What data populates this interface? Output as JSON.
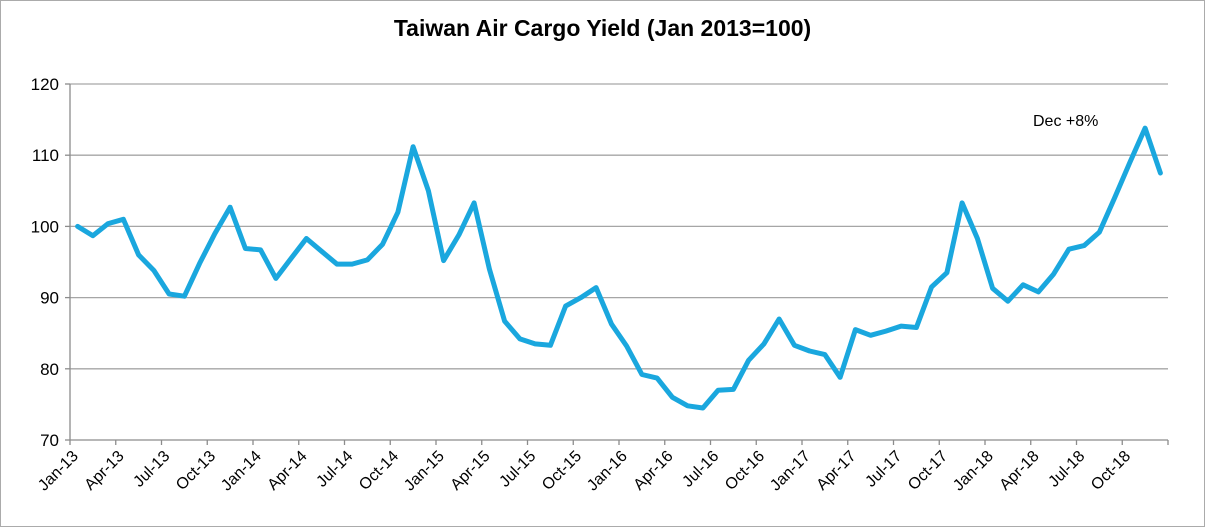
{
  "chart_data": {
    "type": "line",
    "title": "Taiwan Air Cargo Yield (Jan 2013=100)",
    "series_name": "Taiwan air cargo yield index (Jan 2013 = 100)",
    "x": [
      "Jan-13",
      "Feb-13",
      "Mar-13",
      "Apr-13",
      "May-13",
      "Jun-13",
      "Jul-13",
      "Aug-13",
      "Sep-13",
      "Oct-13",
      "Nov-13",
      "Dec-13",
      "Jan-14",
      "Feb-14",
      "Mar-14",
      "Apr-14",
      "May-14",
      "Jun-14",
      "Jul-14",
      "Aug-14",
      "Sep-14",
      "Oct-14",
      "Nov-14",
      "Dec-14",
      "Jan-15",
      "Feb-15",
      "Mar-15",
      "Apr-15",
      "May-15",
      "Jun-15",
      "Jul-15",
      "Aug-15",
      "Sep-15",
      "Oct-15",
      "Nov-15",
      "Dec-15",
      "Jan-16",
      "Feb-16",
      "Mar-16",
      "Apr-16",
      "May-16",
      "Jun-16",
      "Jul-16",
      "Aug-16",
      "Sep-16",
      "Oct-16",
      "Nov-16",
      "Dec-16",
      "Jan-17",
      "Feb-17",
      "Mar-17",
      "Apr-17",
      "May-17",
      "Jun-17",
      "Jul-17",
      "Aug-17",
      "Sep-17",
      "Oct-17",
      "Nov-17",
      "Dec-17",
      "Jan-18",
      "Feb-18",
      "Mar-18",
      "Apr-18",
      "May-18",
      "Jun-18",
      "Jul-18",
      "Aug-18",
      "Sep-18",
      "Oct-18",
      "Nov-18",
      "Dec-18"
    ],
    "values": [
      100,
      98.7,
      100.4,
      101,
      96,
      93.8,
      90.5,
      90.2,
      94.8,
      99,
      102.7,
      96.9,
      96.7,
      92.7,
      95.5,
      98.3,
      96.5,
      94.7,
      94.7,
      95.3,
      97.5,
      102,
      111.2,
      105,
      95.2,
      98.8,
      103.3,
      94,
      86.7,
      84.2,
      83.5,
      83.3,
      88.8,
      90,
      91.4,
      86.3,
      83.2,
      79.2,
      78.7,
      76,
      74.8,
      74.5,
      77,
      77.1,
      81.2,
      83.5,
      87,
      83.3,
      82.5,
      82,
      78.8,
      85.5,
      84.7,
      85.3,
      86,
      85.8,
      91.5,
      93.5,
      103.3,
      98.3,
      91.3,
      89.5,
      91.8,
      90.8,
      93.3,
      96.8,
      97.3,
      99.2,
      104,
      109,
      113.8,
      107.5
    ],
    "x_tick_labels": [
      "Jan-13",
      "Apr-13",
      "Jul-13",
      "Oct-13",
      "Jan-14",
      "Apr-14",
      "Jul-14",
      "Oct-14",
      "Jan-15",
      "Apr-15",
      "Jul-15",
      "Oct-15",
      "Jan-16",
      "Apr-16",
      "Jul-16",
      "Oct-16",
      "Jan-17",
      "Apr-17",
      "Jul-17",
      "Oct-17",
      "Jan-18",
      "Apr-18",
      "Jul-18",
      "Oct-18"
    ],
    "xtick_every_months": 3,
    "ylim": [
      70,
      120
    ],
    "ytick_interval": 10,
    "y_tick_labels": [
      "70",
      "80",
      "90",
      "100",
      "110",
      "120"
    ],
    "grid": "horizontal",
    "legend": "none",
    "annotation": {
      "text": "Dec +8%"
    },
    "colors": {
      "line": "#1AA7DE",
      "gridline": "#A6A6A6",
      "axis": "#8C8C8C",
      "text": "#000000",
      "background": "#FFFFFF"
    }
  }
}
